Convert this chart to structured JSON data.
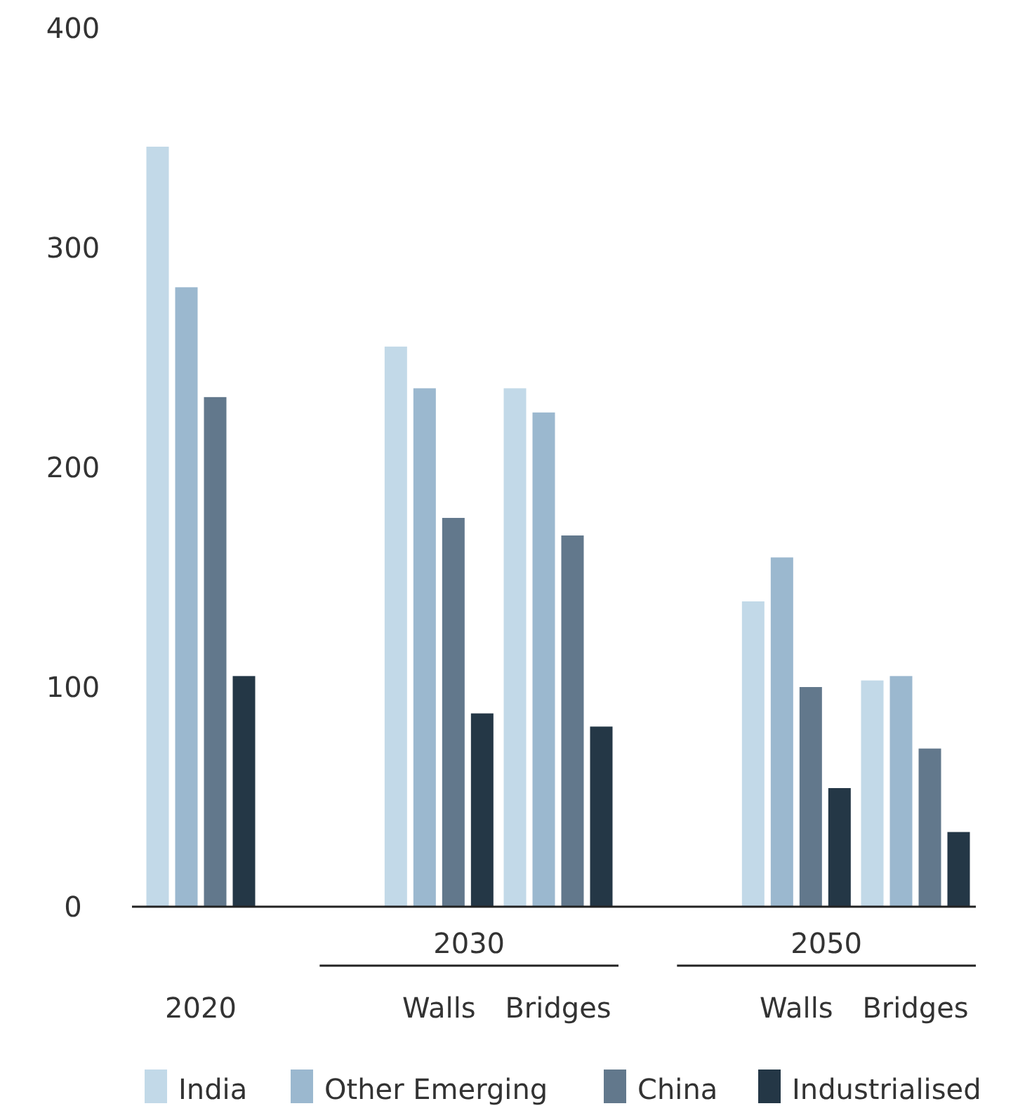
{
  "chart_data": {
    "type": "bar",
    "categories": [
      "2020",
      "Walls",
      "Bridges",
      "Walls",
      "Bridges"
    ],
    "annotations": [
      "2030",
      "2050"
    ],
    "series": [
      {
        "name": "India",
        "color": "#c2d9e8",
        "values": [
          346,
          255,
          236,
          139,
          103
        ]
      },
      {
        "name": "Other Emerging",
        "color": "#9bb8cf",
        "values": [
          282,
          236,
          225,
          159,
          105
        ]
      },
      {
        "name": "China",
        "color": "#62788c",
        "values": [
          232,
          177,
          169,
          100,
          72
        ]
      },
      {
        "name": "Industrialised",
        "color": "#243746",
        "values": [
          105,
          88,
          82,
          54,
          34
        ]
      }
    ],
    "ylim": [
      0,
      400
    ],
    "yticks": [
      0,
      100,
      200,
      300,
      400
    ],
    "grid": false,
    "legend": "bottom"
  }
}
